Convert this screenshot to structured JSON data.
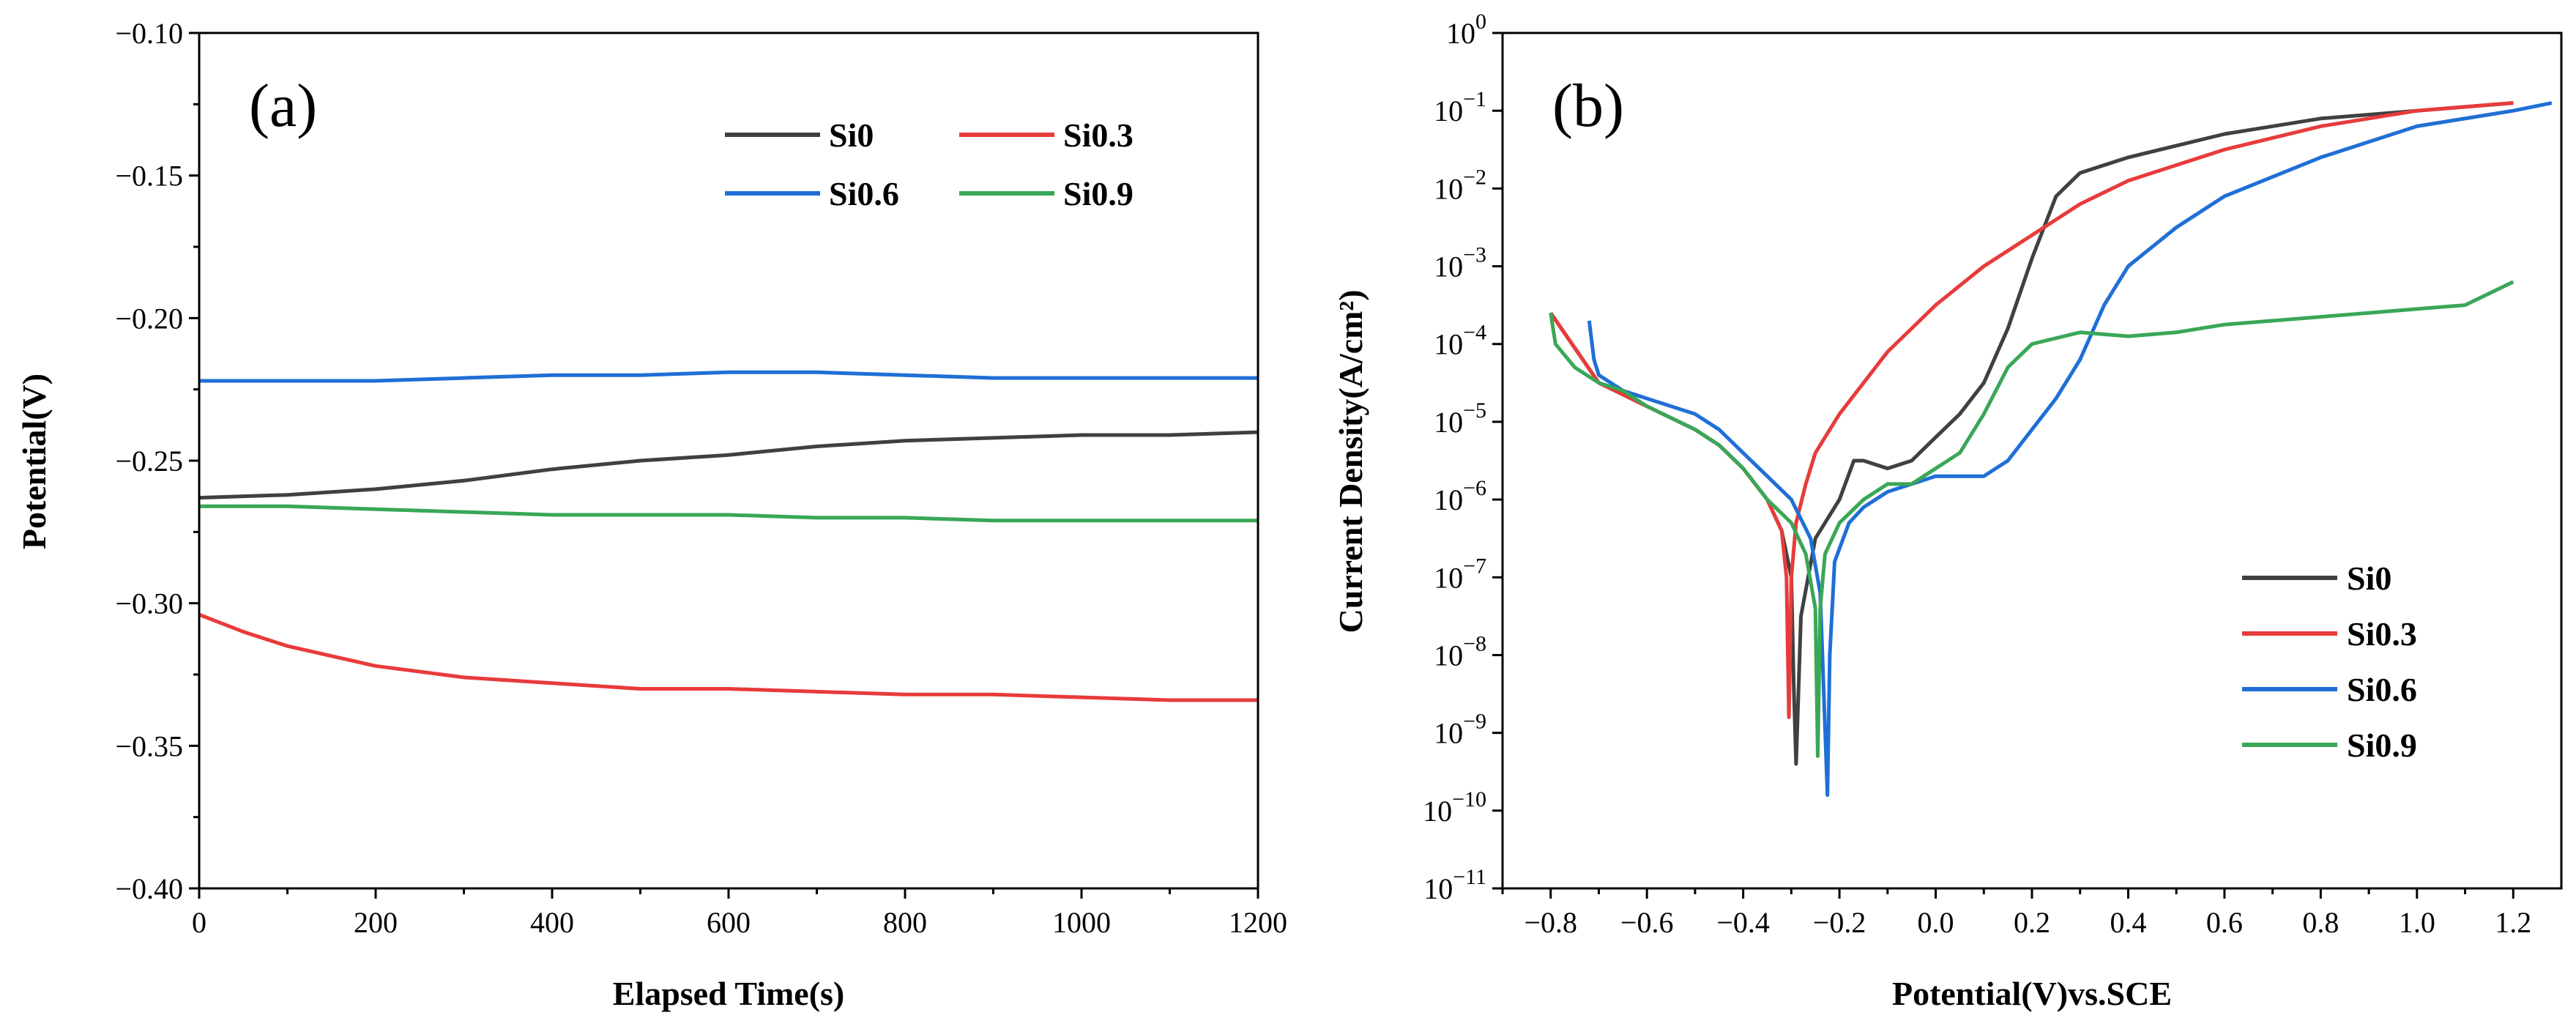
{
  "chart_data": [
    {
      "type": "line",
      "panel_label": "(a)",
      "xlabel": "Elapsed Time(s)",
      "ylabel": "Potential(V)",
      "xlim": [
        0,
        1200
      ],
      "ylim": [
        -0.4,
        -0.1
      ],
      "x_ticks": [
        0,
        200,
        400,
        600,
        800,
        1000,
        1200
      ],
      "x_tick_labels": [
        "0",
        "200",
        "400",
        "600",
        "800",
        "1000",
        "1200"
      ],
      "y_ticks": [
        -0.4,
        -0.35,
        -0.3,
        -0.25,
        -0.2,
        -0.15,
        -0.1
      ],
      "y_tick_labels": [
        "−0.40",
        "−0.35",
        "−0.30",
        "−0.25",
        "−0.20",
        "−0.15",
        "−0.10"
      ],
      "legend_position": "top-right",
      "series": [
        {
          "name": "Si0",
          "color": "#404040",
          "x": [
            0,
            100,
            200,
            300,
            400,
            500,
            600,
            700,
            800,
            900,
            1000,
            1100,
            1200
          ],
          "y": [
            -0.263,
            -0.262,
            -0.26,
            -0.257,
            -0.253,
            -0.25,
            -0.248,
            -0.245,
            -0.243,
            -0.242,
            -0.241,
            -0.241,
            -0.24
          ]
        },
        {
          "name": "Si0.3",
          "color": "#e83b3b",
          "x": [
            0,
            50,
            100,
            200,
            300,
            400,
            500,
            600,
            700,
            800,
            900,
            1000,
            1100,
            1200
          ],
          "y": [
            -0.304,
            -0.31,
            -0.315,
            -0.322,
            -0.326,
            -0.328,
            -0.33,
            -0.33,
            -0.331,
            -0.332,
            -0.332,
            -0.333,
            -0.334,
            -0.334
          ]
        },
        {
          "name": "Si0.6",
          "color": "#1f6fd6",
          "x": [
            0,
            100,
            200,
            300,
            400,
            500,
            600,
            700,
            800,
            900,
            1000,
            1100,
            1200
          ],
          "y": [
            -0.222,
            -0.222,
            -0.222,
            -0.221,
            -0.22,
            -0.22,
            -0.219,
            -0.219,
            -0.22,
            -0.221,
            -0.221,
            -0.221,
            -0.221
          ]
        },
        {
          "name": "Si0.9",
          "color": "#3aa757",
          "x": [
            0,
            100,
            200,
            300,
            400,
            500,
            600,
            700,
            800,
            900,
            1000,
            1100,
            1200
          ],
          "y": [
            -0.266,
            -0.266,
            -0.267,
            -0.268,
            -0.269,
            -0.269,
            -0.269,
            -0.27,
            -0.27,
            -0.271,
            -0.271,
            -0.271,
            -0.271
          ]
        }
      ]
    },
    {
      "type": "line",
      "panel_label": "(b)",
      "xlabel": "Potential(V)vs.SCE",
      "ylabel": "Current Density(A/cm²)",
      "yscale": "log",
      "xlim": [
        -0.9,
        1.3
      ],
      "ylim_exp": [
        -11,
        0
      ],
      "x_ticks": [
        -0.8,
        -0.6,
        -0.4,
        -0.2,
        0.0,
        0.2,
        0.4,
        0.6,
        0.8,
        1.0,
        1.2
      ],
      "x_tick_labels": [
        "−0.8",
        "−0.6",
        "−0.4",
        "−0.2",
        "0.0",
        "0.2",
        "0.4",
        "0.6",
        "0.8",
        "1.0",
        "1.2"
      ],
      "y_tick_exponents": [
        "−11",
        "−10",
        "−9",
        "−8",
        "−7",
        "−6",
        "−5",
        "−4",
        "−3",
        "−2",
        "−1",
        "0"
      ],
      "legend_position": "bottom-right",
      "series": [
        {
          "name": "Si0",
          "color": "#404040",
          "x": [
            -0.8,
            -0.7,
            -0.6,
            -0.5,
            -0.45,
            -0.4,
            -0.35,
            -0.32,
            -0.3,
            -0.295,
            -0.29,
            -0.28,
            -0.25,
            -0.2,
            -0.17,
            -0.15,
            -0.1,
            -0.05,
            0.0,
            0.05,
            0.1,
            0.15,
            0.2,
            0.25,
            0.3,
            0.4,
            0.6,
            0.8,
            1.0,
            1.2
          ],
          "log_y": [
            -3.6,
            -4.5,
            -4.8,
            -5.1,
            -5.3,
            -5.6,
            -6.0,
            -6.4,
            -7.0,
            -8.4,
            -9.4,
            -7.5,
            -6.5,
            -6.0,
            -5.5,
            -5.5,
            -5.6,
            -5.5,
            -5.2,
            -4.9,
            -4.5,
            -3.8,
            -2.9,
            -2.1,
            -1.8,
            -1.6,
            -1.3,
            -1.1,
            -1.0,
            -0.9
          ]
        },
        {
          "name": "Si0.3",
          "color": "#e83b3b",
          "x": [
            -0.8,
            -0.7,
            -0.6,
            -0.5,
            -0.45,
            -0.4,
            -0.35,
            -0.32,
            -0.31,
            -0.305,
            -0.3,
            -0.29,
            -0.27,
            -0.25,
            -0.2,
            -0.15,
            -0.1,
            -0.05,
            0.0,
            0.1,
            0.2,
            0.3,
            0.4,
            0.6,
            0.8,
            1.0,
            1.2
          ],
          "log_y": [
            -3.6,
            -4.5,
            -4.8,
            -5.1,
            -5.3,
            -5.6,
            -6.0,
            -6.4,
            -7.0,
            -8.8,
            -7.0,
            -6.3,
            -5.8,
            -5.4,
            -4.9,
            -4.5,
            -4.1,
            -3.8,
            -3.5,
            -3.0,
            -2.6,
            -2.2,
            -1.9,
            -1.5,
            -1.2,
            -1.0,
            -0.9
          ]
        },
        {
          "name": "Si0.6",
          "color": "#1f6fd6",
          "x": [
            -0.72,
            -0.71,
            -0.7,
            -0.65,
            -0.6,
            -0.5,
            -0.45,
            -0.4,
            -0.35,
            -0.3,
            -0.26,
            -0.24,
            -0.225,
            -0.22,
            -0.21,
            -0.18,
            -0.15,
            -0.1,
            -0.05,
            0.0,
            0.05,
            0.1,
            0.15,
            0.2,
            0.25,
            0.3,
            0.35,
            0.4,
            0.5,
            0.6,
            0.8,
            1.0,
            1.2,
            1.28
          ],
          "log_y": [
            -3.7,
            -4.2,
            -4.4,
            -4.6,
            -4.7,
            -4.9,
            -5.1,
            -5.4,
            -5.7,
            -6.0,
            -6.5,
            -7.2,
            -9.8,
            -8.0,
            -6.8,
            -6.3,
            -6.1,
            -5.9,
            -5.8,
            -5.7,
            -5.7,
            -5.7,
            -5.5,
            -5.1,
            -4.7,
            -4.2,
            -3.5,
            -3.0,
            -2.5,
            -2.1,
            -1.6,
            -1.2,
            -1.0,
            -0.9
          ]
        },
        {
          "name": "Si0.9",
          "color": "#3aa757",
          "x": [
            -0.8,
            -0.79,
            -0.75,
            -0.7,
            -0.65,
            -0.6,
            -0.5,
            -0.45,
            -0.4,
            -0.35,
            -0.3,
            -0.27,
            -0.25,
            -0.245,
            -0.24,
            -0.23,
            -0.2,
            -0.15,
            -0.1,
            -0.05,
            0.0,
            0.05,
            0.1,
            0.15,
            0.2,
            0.3,
            0.4,
            0.5,
            0.6,
            0.8,
            1.0,
            1.1,
            1.2
          ],
          "log_y": [
            -3.6,
            -4.0,
            -4.3,
            -4.5,
            -4.6,
            -4.8,
            -5.1,
            -5.3,
            -5.6,
            -6.0,
            -6.3,
            -6.7,
            -7.4,
            -9.3,
            -7.4,
            -6.7,
            -6.3,
            -6.0,
            -5.8,
            -5.8,
            -5.6,
            -5.4,
            -4.9,
            -4.3,
            -4.0,
            -3.85,
            -3.9,
            -3.85,
            -3.75,
            -3.65,
            -3.55,
            -3.5,
            -3.2
          ]
        }
      ]
    }
  ]
}
